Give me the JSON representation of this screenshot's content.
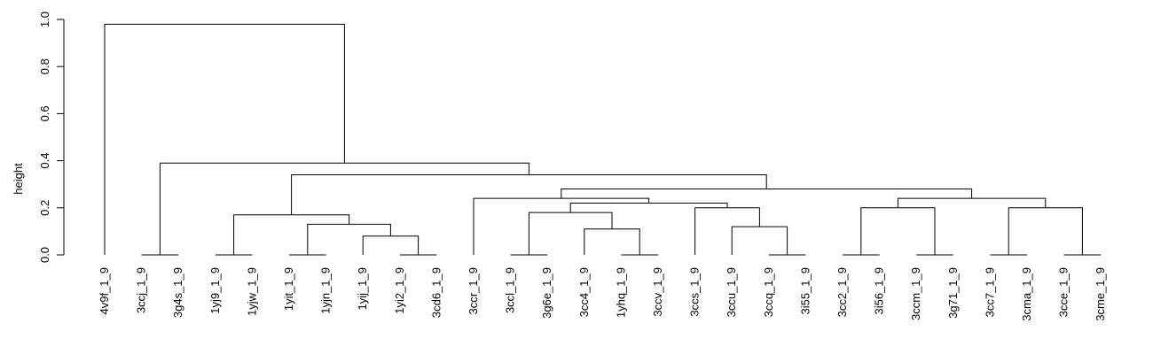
{
  "chart_data": {
    "type": "dendrogram",
    "ylabel": "height",
    "ylim": [
      0,
      1
    ],
    "yticks": [
      "0.0",
      "0.2",
      "0.4",
      "0.6",
      "0.8",
      "1.0"
    ],
    "leaves": [
      "4v9f_1_9",
      "3ccj_1_9",
      "3g4s_1_9",
      "1yj9_1_9",
      "1yjw_1_9",
      "1yit_1_9",
      "1yjn_1_9",
      "1yij_1_9",
      "1yi2_1_9",
      "3cd6_1_9",
      "3ccr_1_9",
      "3ccl_1_9",
      "3g6e_1_9",
      "3cc4_1_9",
      "1yhq_1_9",
      "3ccv_1_9",
      "3ccs_1_9",
      "3ccu_1_9",
      "3ccq_1_9",
      "3i55_1_9",
      "3cc2_1_9",
      "3i56_1_9",
      "3ccm_1_9",
      "3g71_1_9",
      "3cc7_1_9",
      "3cma_1_9",
      "3cce_1_9",
      "3cme_1_9"
    ],
    "merges": [
      {
        "left": "L1",
        "right": "L2",
        "height": 0
      },
      {
        "left": "L3",
        "right": "L4",
        "height": 0
      },
      {
        "left": "L5",
        "right": "L6",
        "height": 0
      },
      {
        "left": "L8",
        "right": "L9",
        "height": 0
      },
      {
        "left": "L7",
        "right": "N4",
        "height": 0.08
      },
      {
        "left": "N3",
        "right": "N5",
        "height": 0.13
      },
      {
        "left": "N2",
        "right": "N6",
        "height": 0.17
      },
      {
        "left": "L11",
        "right": "L12",
        "height": 0
      },
      {
        "left": "L14",
        "right": "L15",
        "height": 0
      },
      {
        "left": "L13",
        "right": "N9",
        "height": 0.11
      },
      {
        "left": "N8",
        "right": "N10",
        "height": 0.18
      },
      {
        "left": "L18",
        "right": "L19",
        "height": 0
      },
      {
        "left": "L17",
        "right": "N12",
        "height": 0.12
      },
      {
        "left": "L16",
        "right": "N13",
        "height": 0.2
      },
      {
        "left": "N11",
        "right": "N14",
        "height": 0.22
      },
      {
        "left": "L10",
        "right": "N15",
        "height": 0.24
      },
      {
        "left": "L20",
        "right": "L21",
        "height": 0
      },
      {
        "left": "L22",
        "right": "L23",
        "height": 0
      },
      {
        "left": "N17",
        "right": "N18",
        "height": 0.2
      },
      {
        "left": "L24",
        "right": "L25",
        "height": 0
      },
      {
        "left": "L26",
        "right": "L27",
        "height": 0
      },
      {
        "left": "N20",
        "right": "N21",
        "height": 0.2
      },
      {
        "left": "N19",
        "right": "N22",
        "height": 0.24
      },
      {
        "left": "N16",
        "right": "N23",
        "height": 0.28
      },
      {
        "left": "N7",
        "right": "N24",
        "height": 0.34
      },
      {
        "left": "N1",
        "right": "N25",
        "height": 0.39
      },
      {
        "left": "L0",
        "right": "N26",
        "height": 0.98
      }
    ]
  }
}
